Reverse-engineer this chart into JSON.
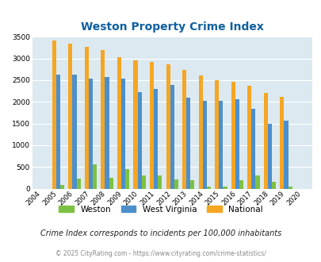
{
  "title": "Weston Property Crime Index",
  "years": [
    2004,
    2005,
    2006,
    2007,
    2008,
    2009,
    2010,
    2011,
    2012,
    2013,
    2014,
    2015,
    2016,
    2017,
    2018,
    2019,
    2020
  ],
  "weston": [
    0,
    80,
    230,
    560,
    250,
    450,
    295,
    295,
    220,
    185,
    50,
    50,
    200,
    310,
    155,
    50,
    0
  ],
  "west_virginia": [
    0,
    2630,
    2620,
    2540,
    2570,
    2540,
    2220,
    2290,
    2380,
    2090,
    2030,
    2030,
    2050,
    1840,
    1490,
    1565,
    0
  ],
  "national": [
    0,
    3410,
    3330,
    3260,
    3200,
    3030,
    2960,
    2910,
    2860,
    2730,
    2600,
    2490,
    2460,
    2370,
    2200,
    2120,
    0
  ],
  "weston_color": "#7dc142",
  "wv_color": "#4d8fcb",
  "national_color": "#f5a623",
  "bg_color": "#dce9f0",
  "title_color": "#1060a0",
  "ylabel_max": 3500,
  "yticks": [
    0,
    500,
    1000,
    1500,
    2000,
    2500,
    3000,
    3500
  ],
  "subtitle": "Crime Index corresponds to incidents per 100,000 inhabitants",
  "footer": "© 2025 CityRating.com - https://www.cityrating.com/crime-statistics/",
  "bar_width": 0.25,
  "fig_width": 4.06,
  "fig_height": 3.3,
  "dpi": 100
}
